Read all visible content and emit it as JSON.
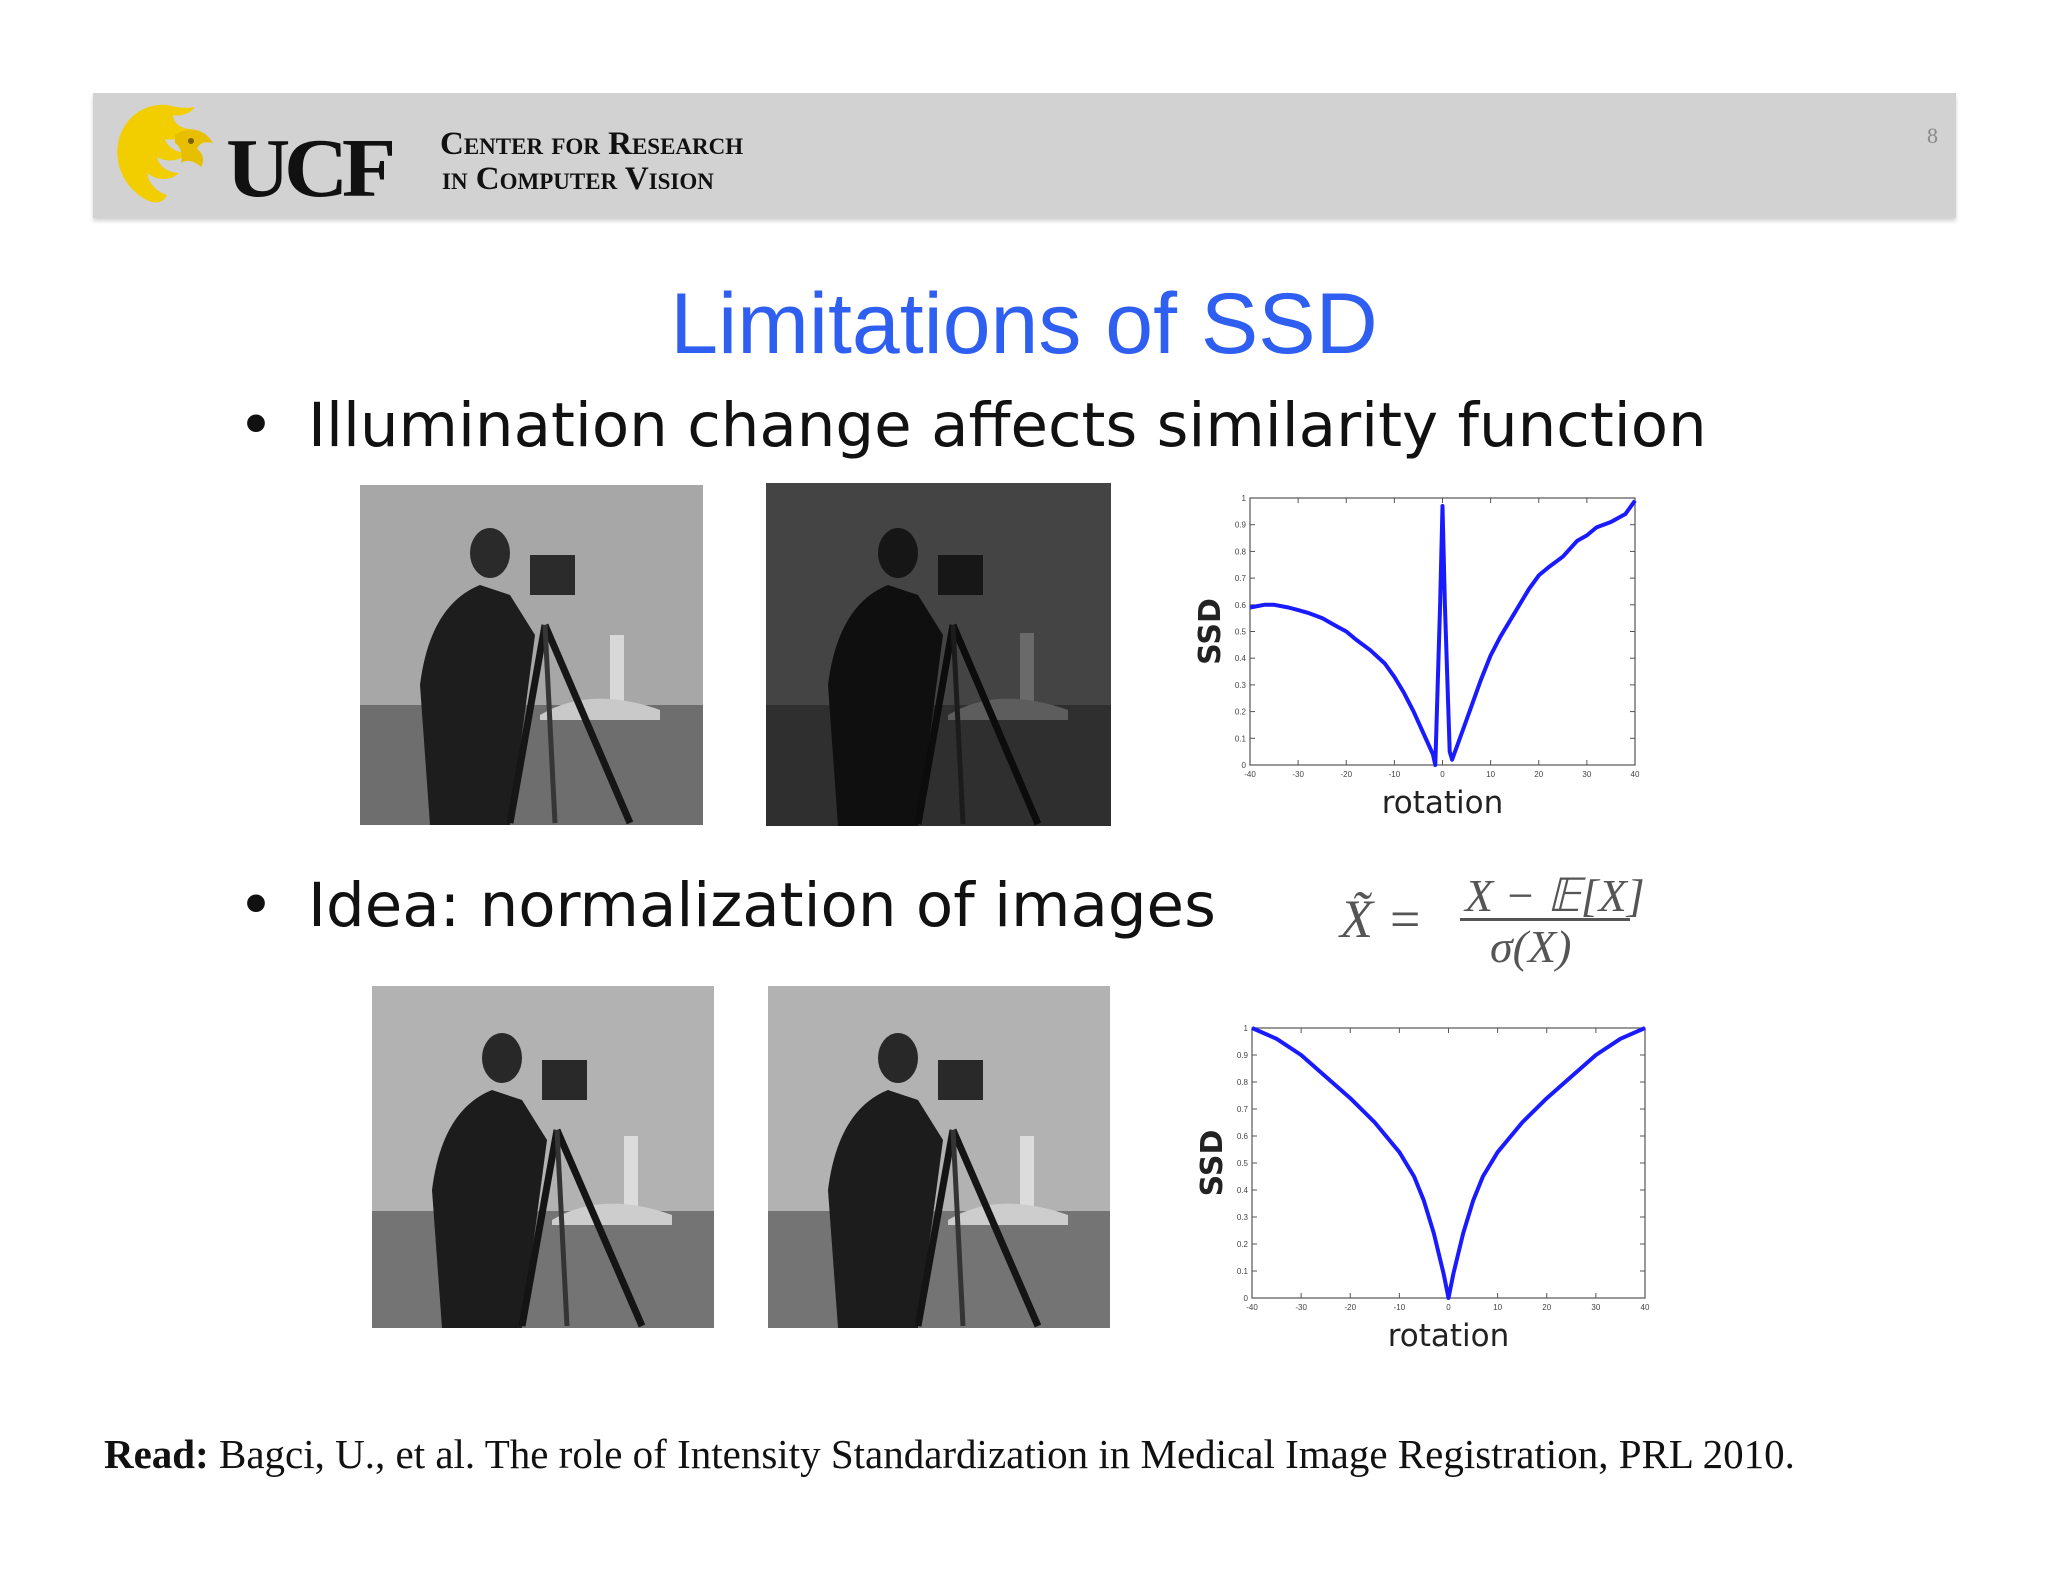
{
  "header": {
    "logo_text": "UCF",
    "logo_sub_line1": "Center for Research",
    "logo_sub_line2": "in Computer Vision",
    "page_number": "8"
  },
  "title": "Limitations of SSD",
  "bullets": [
    {
      "text": "Illumination change affects similarity function"
    },
    {
      "text": "Idea: normalization of images"
    }
  ],
  "formula": {
    "lhs": "X̃ =",
    "numerator": "X − 𝔼[X]",
    "denominator": "σ(X)"
  },
  "chart_data": [
    {
      "type": "line",
      "xlabel": "rotation",
      "ylabel": "SSD",
      "xlim": [
        -40,
        40
      ],
      "ylim": [
        0,
        1
      ],
      "xticks": [
        "-40",
        "-30",
        "-20",
        "-10",
        "0",
        "10",
        "20",
        "30",
        "40"
      ],
      "yticks": [
        "0",
        "0.1",
        "0.2",
        "0.3",
        "0.4",
        "0.5",
        "0.6",
        "0.7",
        "0.8",
        "0.9",
        "1"
      ],
      "color": "#1a1aff",
      "x": [
        -40,
        -37,
        -35,
        -32,
        -30,
        -28,
        -25,
        -22,
        -20,
        -18,
        -15,
        -12,
        -10,
        -8,
        -6,
        -4,
        -2,
        -1.5,
        -0.5,
        0,
        0.5,
        1.5,
        2,
        4,
        6,
        8,
        10,
        12,
        15,
        18,
        20,
        22,
        25,
        28,
        30,
        32,
        35,
        38,
        40
      ],
      "y": [
        0.59,
        0.6,
        0.6,
        0.59,
        0.58,
        0.57,
        0.55,
        0.52,
        0.5,
        0.47,
        0.43,
        0.38,
        0.33,
        0.27,
        0.2,
        0.12,
        0.04,
        0.0,
        0.6,
        0.97,
        0.6,
        0.05,
        0.02,
        0.12,
        0.22,
        0.32,
        0.41,
        0.48,
        0.57,
        0.66,
        0.71,
        0.74,
        0.78,
        0.84,
        0.86,
        0.89,
        0.91,
        0.94,
        0.99
      ]
    },
    {
      "type": "line",
      "xlabel": "rotation",
      "ylabel": "SSD",
      "xlim": [
        -40,
        40
      ],
      "ylim": [
        0,
        1
      ],
      "xticks": [
        "-40",
        "-30",
        "-20",
        "-10",
        "0",
        "10",
        "20",
        "30",
        "40"
      ],
      "yticks": [
        "0",
        "0.1",
        "0.2",
        "0.3",
        "0.4",
        "0.5",
        "0.6",
        "0.7",
        "0.8",
        "0.9",
        "1"
      ],
      "color": "#1a1aff",
      "x": [
        -40,
        -35,
        -30,
        -25,
        -20,
        -15,
        -10,
        -7,
        -5,
        -3,
        -1,
        0,
        1,
        3,
        5,
        7,
        10,
        15,
        20,
        25,
        30,
        35,
        40
      ],
      "y": [
        1.0,
        0.96,
        0.9,
        0.82,
        0.74,
        0.65,
        0.54,
        0.45,
        0.36,
        0.24,
        0.09,
        0.0,
        0.09,
        0.24,
        0.36,
        0.45,
        0.54,
        0.65,
        0.74,
        0.82,
        0.9,
        0.96,
        1.0
      ]
    }
  ],
  "reference": {
    "label": "Read:",
    "text": " Bagci, U., et al. The role of Intensity Standardization in Medical Image Registration, PRL 2010."
  }
}
